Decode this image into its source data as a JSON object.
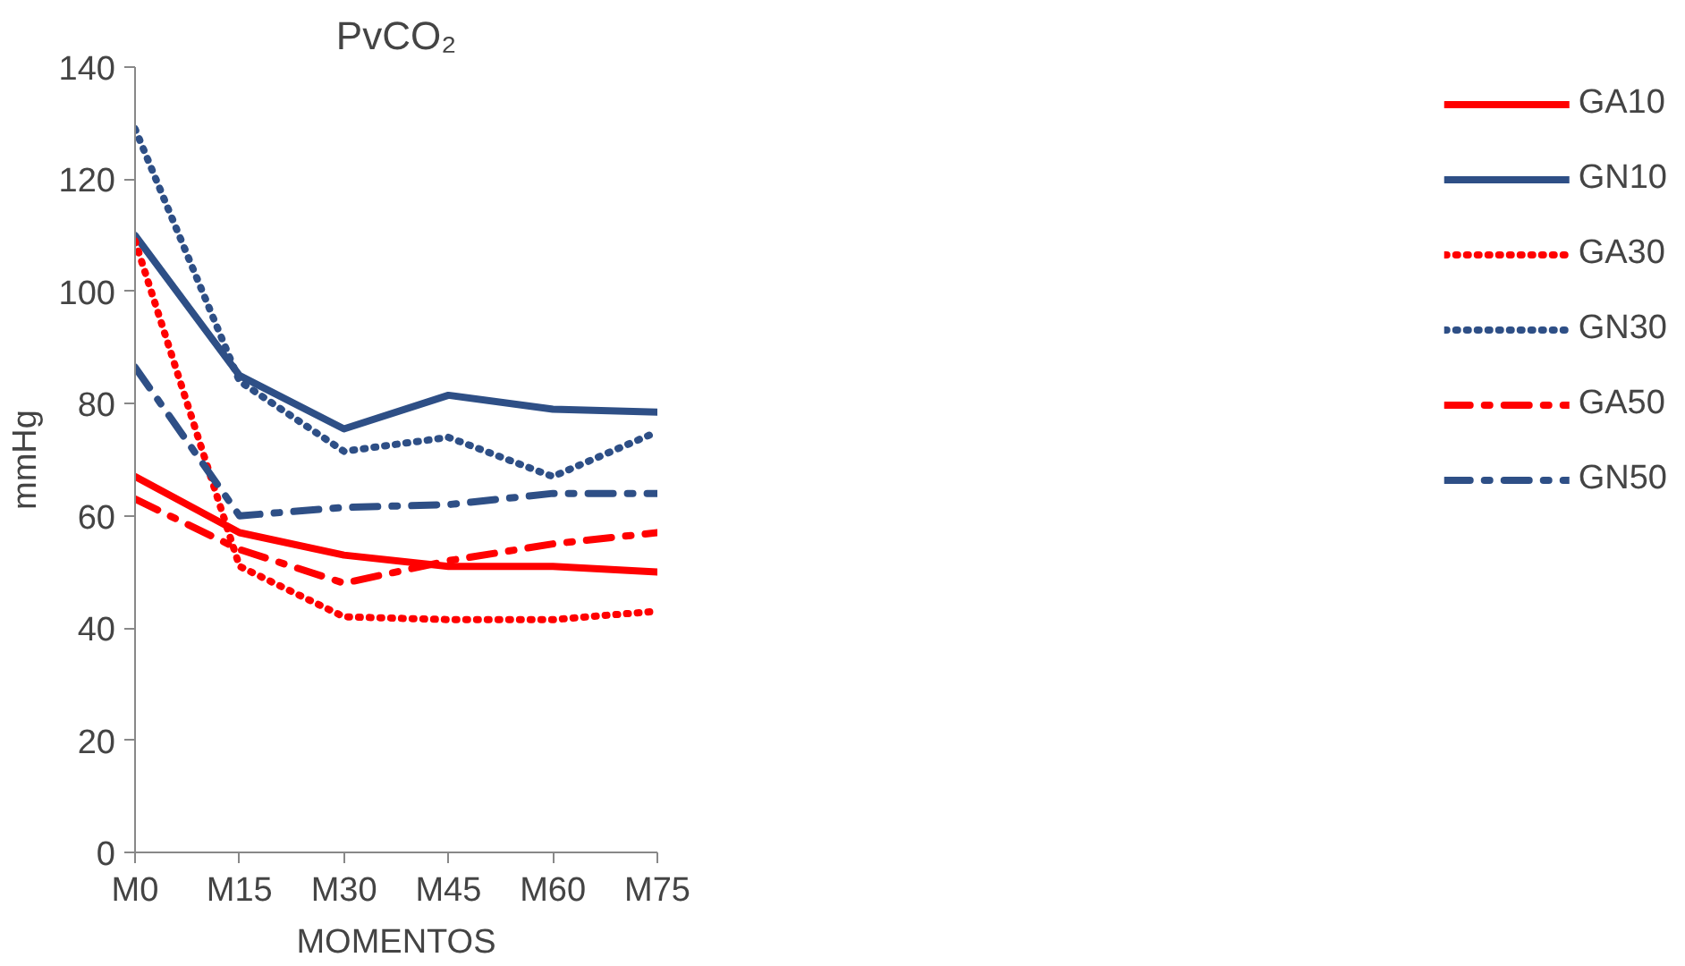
{
  "chart_data": {
    "type": "line",
    "title": "PvCO₂",
    "xlabel": "MOMENTOS",
    "ylabel": "mmHg",
    "categories": [
      "M0",
      "M15",
      "M30",
      "M45",
      "M60",
      "M75"
    ],
    "ylim": [
      0,
      140
    ],
    "yticks": [
      0,
      20,
      40,
      60,
      80,
      100,
      120,
      140
    ],
    "grid": false,
    "legend": "right",
    "marker": "none",
    "series": [
      {
        "name": "GA10",
        "color": "#ff0000",
        "line_style": "solid",
        "values": [
          67,
          57,
          53,
          51,
          51,
          50
        ]
      },
      {
        "name": "GN10",
        "color": "#2e4f86",
        "line_style": "solid",
        "values": [
          110,
          85,
          75.5,
          81.5,
          79,
          78.5
        ]
      },
      {
        "name": "GA30",
        "color": "#ff0000",
        "line_style": "dotted",
        "values": [
          109,
          51,
          42,
          41.5,
          41.5,
          43
        ]
      },
      {
        "name": "GN30",
        "color": "#2e4f86",
        "line_style": "dotted",
        "values": [
          129,
          84,
          71.5,
          74,
          67,
          75
        ]
      },
      {
        "name": "GA50",
        "color": "#ff0000",
        "line_style": "dashdot",
        "values": [
          63,
          54,
          48,
          52,
          55,
          57
        ]
      },
      {
        "name": "GN50",
        "color": "#2e4f86",
        "line_style": "dashdot",
        "values": [
          86.5,
          60,
          61.5,
          62,
          64,
          64
        ]
      }
    ]
  }
}
